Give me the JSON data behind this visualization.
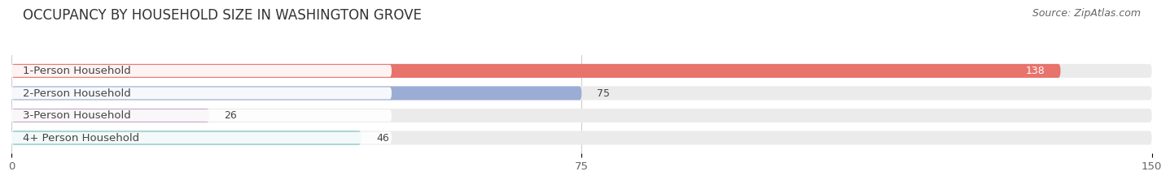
{
  "title": "OCCUPANCY BY HOUSEHOLD SIZE IN WASHINGTON GROVE",
  "source": "Source: ZipAtlas.com",
  "categories": [
    "1-Person Household",
    "2-Person Household",
    "3-Person Household",
    "4+ Person Household"
  ],
  "values": [
    138,
    75,
    26,
    46
  ],
  "bar_colors": [
    "#e8736c",
    "#9badd4",
    "#c4a8c8",
    "#6dbdbe"
  ],
  "bar_bg_color": "#ebebeb",
  "xlim": [
    0,
    150
  ],
  "xticks": [
    0,
    75,
    150
  ],
  "title_fontsize": 12,
  "source_fontsize": 9,
  "label_fontsize": 9.5,
  "value_fontsize": 9,
  "background_color": "#ffffff",
  "bar_bg_full": 150
}
